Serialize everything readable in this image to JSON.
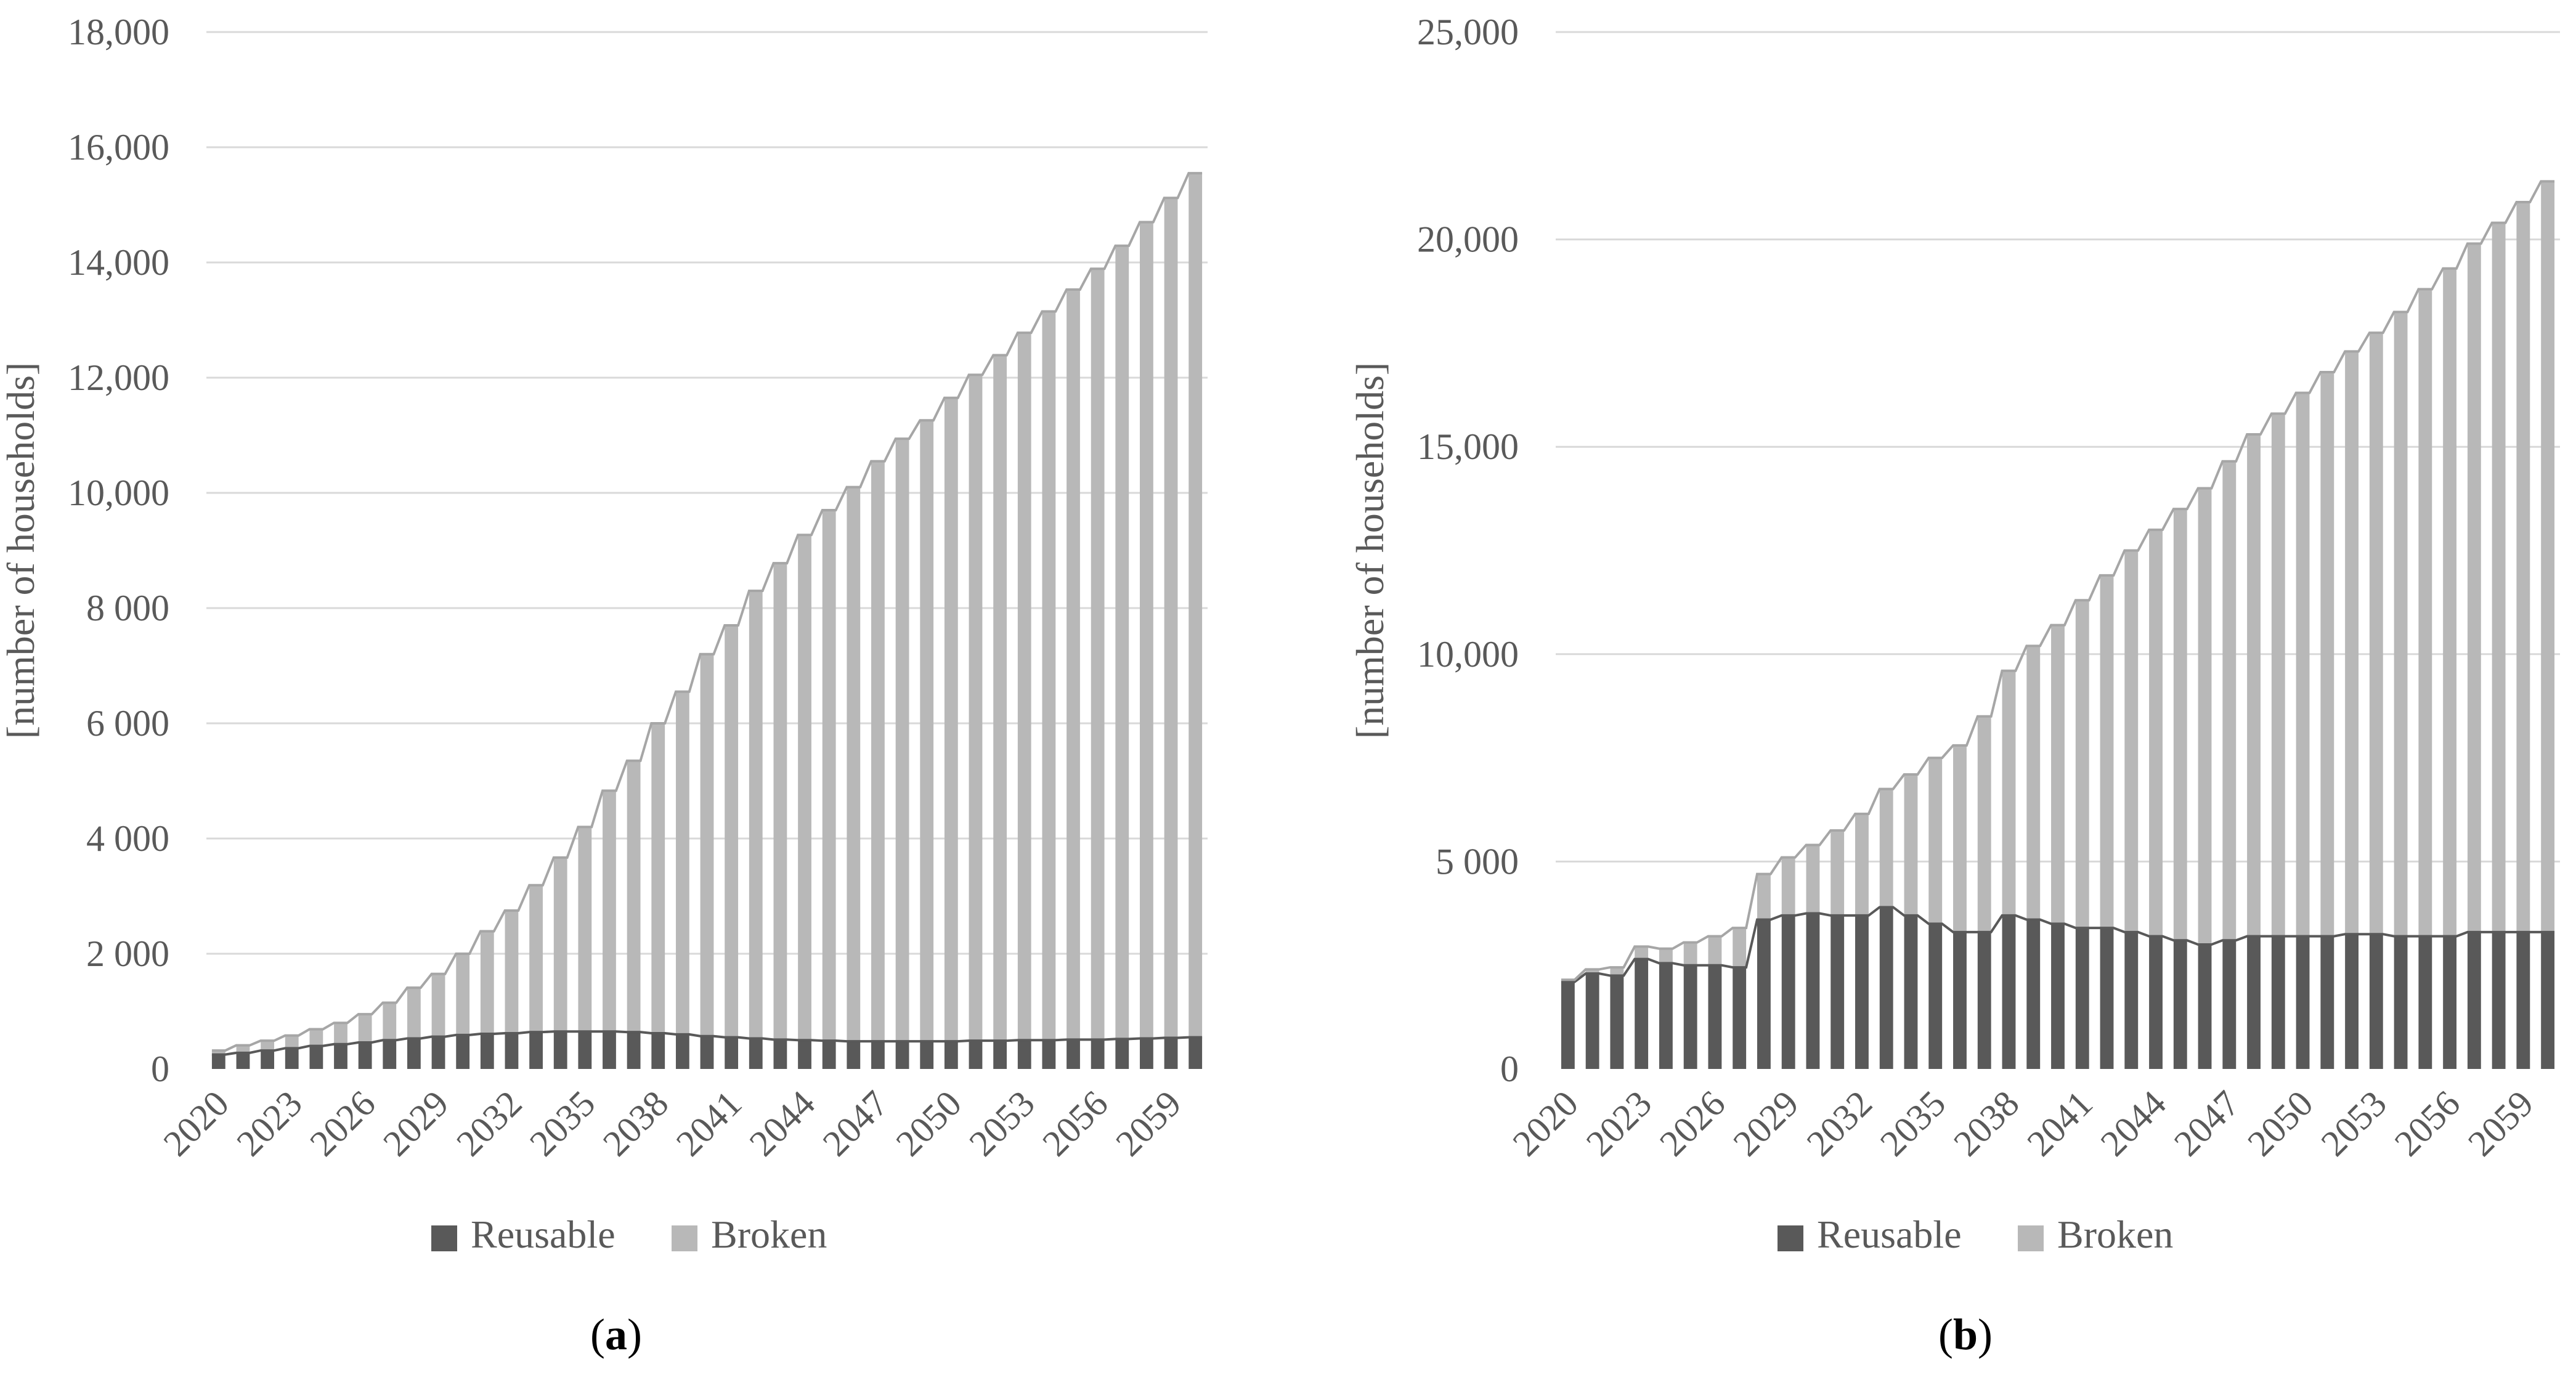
{
  "colors": {
    "reusable": "#595959",
    "broken": "#b8b8b8",
    "outline": "#a6a6a6",
    "grid": "#d9d9d9"
  },
  "chart_data": [
    {
      "type": "bar",
      "stacked": true,
      "panel_label": "a",
      "ylabel": "[number of households]",
      "ylim": [
        0,
        18000
      ],
      "yticks": [
        0,
        2000,
        4000,
        6000,
        8000,
        10000,
        12000,
        14000,
        16000,
        18000
      ],
      "ytick_labels": [
        "0",
        "2 000",
        "4 000",
        "6 000",
        "8 000",
        "10,000",
        "12,000",
        "14,000",
        "16,000",
        "18,000"
      ],
      "categories": [
        "2020",
        "2021",
        "2022",
        "2023",
        "2024",
        "2025",
        "2026",
        "2027",
        "2028",
        "2029",
        "2030",
        "2031",
        "2032",
        "2033",
        "2034",
        "2035",
        "2036",
        "2037",
        "2038",
        "2039",
        "2040",
        "2041",
        "2042",
        "2043",
        "2044",
        "2045",
        "2046",
        "2047",
        "2048",
        "2049",
        "2050",
        "2051",
        "2052",
        "2053",
        "2054",
        "2055",
        "2056",
        "2057",
        "2058",
        "2059",
        "2060"
      ],
      "xtick_labels": [
        "2020",
        "2023",
        "2026",
        "2029",
        "2032",
        "2035",
        "2038",
        "2041",
        "2044",
        "2047",
        "2050",
        "2053",
        "2056",
        "2059"
      ],
      "grid": true,
      "legend": "bottom",
      "series": [
        {
          "name": "Reusable",
          "values": [
            250,
            280,
            320,
            360,
            400,
            430,
            460,
            500,
            530,
            560,
            590,
            610,
            620,
            640,
            650,
            650,
            650,
            640,
            620,
            600,
            570,
            550,
            530,
            510,
            500,
            490,
            480,
            480,
            480,
            480,
            480,
            490,
            490,
            500,
            500,
            510,
            510,
            520,
            530,
            540,
            550
          ]
        },
        {
          "name": "Broken",
          "values": [
            70,
            130,
            170,
            220,
            290,
            370,
            490,
            650,
            880,
            1090,
            1410,
            1780,
            2130,
            2550,
            3020,
            3550,
            4180,
            4710,
            5380,
            5950,
            6630,
            7150,
            7770,
            8270,
            8770,
            9210,
            9620,
            10070,
            10460,
            10780,
            11170,
            11560,
            11900,
            12280,
            12650,
            13020,
            13380,
            13770,
            14170,
            14580,
            15000
          ]
        }
      ]
    },
    {
      "type": "bar",
      "stacked": true,
      "panel_label": "b",
      "ylabel": "[number of households]",
      "ylim": [
        0,
        25000
      ],
      "yticks": [
        0,
        5000,
        10000,
        15000,
        20000,
        25000
      ],
      "ytick_labels": [
        "0",
        "5 000",
        "10,000",
        "15,000",
        "20,000",
        "25,000"
      ],
      "categories": [
        "2020",
        "2021",
        "2022",
        "2023",
        "2024",
        "2025",
        "2026",
        "2027",
        "2028",
        "2029",
        "2030",
        "2031",
        "2032",
        "2033",
        "2034",
        "2035",
        "2036",
        "2037",
        "2038",
        "2039",
        "2040",
        "2041",
        "2042",
        "2043",
        "2044",
        "2045",
        "2046",
        "2047",
        "2048",
        "2049",
        "2050",
        "2051",
        "2052",
        "2053",
        "2054",
        "2055",
        "2056",
        "2057",
        "2058",
        "2059",
        "2060"
      ],
      "xtick_labels": [
        "2020",
        "2023",
        "2026",
        "2029",
        "2032",
        "2035",
        "2038",
        "2041",
        "2044",
        "2047",
        "2050",
        "2053",
        "2056",
        "2059"
      ],
      "grid": true,
      "legend": "bottom",
      "series": [
        {
          "name": "Reusable",
          "values": [
            2100,
            2300,
            2250,
            2650,
            2550,
            2500,
            2500,
            2450,
            3600,
            3700,
            3750,
            3700,
            3700,
            3900,
            3700,
            3500,
            3300,
            3300,
            3700,
            3600,
            3500,
            3400,
            3400,
            3300,
            3200,
            3100,
            3000,
            3100,
            3200,
            3200,
            3200,
            3200,
            3250,
            3250,
            3200,
            3200,
            3200,
            3300,
            3300,
            3300,
            3300
          ]
        },
        {
          "name": "Broken",
          "values": [
            50,
            100,
            200,
            300,
            350,
            550,
            700,
            950,
            1100,
            1400,
            1650,
            2050,
            2450,
            2850,
            3400,
            4000,
            4500,
            5200,
            5900,
            6600,
            7200,
            7900,
            8500,
            9200,
            9800,
            10400,
            11000,
            11550,
            12100,
            12600,
            13100,
            13600,
            14050,
            14500,
            15050,
            15600,
            16100,
            16600,
            17100,
            17600,
            18100
          ]
        }
      ]
    }
  ]
}
